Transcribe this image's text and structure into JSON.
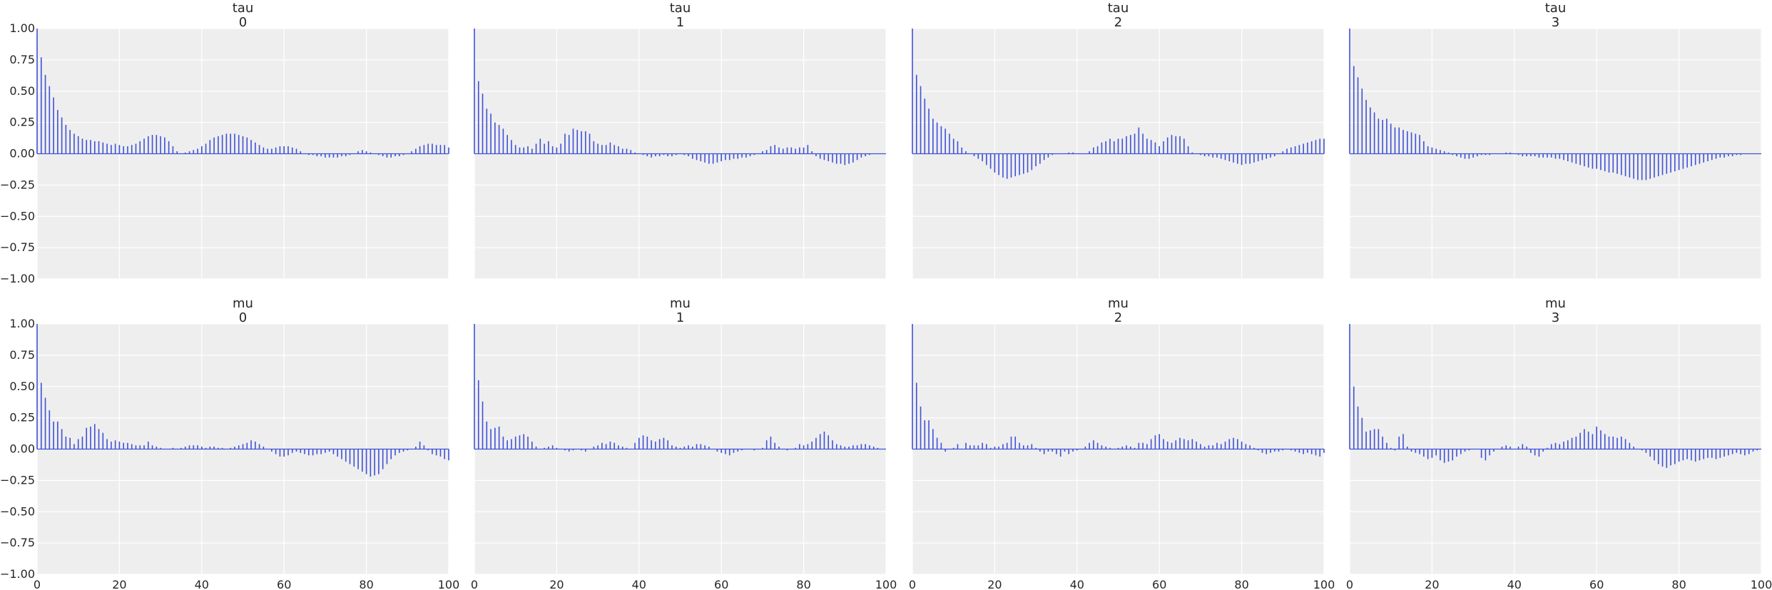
{
  "colors": {
    "bar": "#3f51d6",
    "panel_bg": "#eeeeee",
    "grid": "#ffffff",
    "text": "#262626"
  },
  "chart_data": [
    {
      "type": "bar",
      "title": "tau\n0",
      "xlim": [
        0,
        100
      ],
      "ylim": [
        -1,
        1
      ],
      "grid": true,
      "xticks": [
        "0",
        "20",
        "40",
        "60",
        "80",
        "100"
      ],
      "yticks": [
        "1.00",
        "0.75",
        "0.50",
        "0.25",
        "0.00",
        "−0.25",
        "−0.50",
        "−0.75",
        "−1.00"
      ],
      "values": [
        1.0,
        0.77,
        0.63,
        0.54,
        0.45,
        0.35,
        0.29,
        0.23,
        0.19,
        0.16,
        0.14,
        0.12,
        0.11,
        0.11,
        0.1,
        0.1,
        0.09,
        0.08,
        0.07,
        0.08,
        0.07,
        0.06,
        0.06,
        0.07,
        0.08,
        0.1,
        0.12,
        0.14,
        0.15,
        0.15,
        0.14,
        0.13,
        0.1,
        0.06,
        0.02,
        0.0,
        0.01,
        0.02,
        0.03,
        0.04,
        0.06,
        0.08,
        0.11,
        0.13,
        0.14,
        0.15,
        0.16,
        0.16,
        0.16,
        0.15,
        0.14,
        0.13,
        0.11,
        0.09,
        0.07,
        0.05,
        0.04,
        0.04,
        0.05,
        0.06,
        0.06,
        0.06,
        0.05,
        0.04,
        0.02,
        0.0,
        -0.01,
        -0.01,
        -0.02,
        -0.02,
        -0.03,
        -0.03,
        -0.03,
        -0.03,
        -0.02,
        -0.02,
        -0.01,
        0.0,
        0.02,
        0.03,
        0.02,
        0.01,
        0.0,
        -0.01,
        -0.02,
        -0.03,
        -0.03,
        -0.02,
        -0.02,
        -0.01,
        0.0,
        0.02,
        0.04,
        0.06,
        0.07,
        0.08,
        0.08,
        0.07,
        0.07,
        0.07,
        0.05
      ]
    },
    {
      "type": "bar",
      "title": "tau\n1",
      "xlim": [
        0,
        100
      ],
      "ylim": [
        -1,
        1
      ],
      "grid": true,
      "xticks": [
        "0",
        "20",
        "40",
        "60",
        "80",
        "100"
      ],
      "yticks": [
        "1.00",
        "0.75",
        "0.50",
        "0.25",
        "0.00",
        "−0.25",
        "−0.50",
        "−0.75",
        "−1.00"
      ],
      "values": [
        1.0,
        0.58,
        0.48,
        0.36,
        0.32,
        0.25,
        0.23,
        0.2,
        0.15,
        0.11,
        0.07,
        0.05,
        0.05,
        0.06,
        0.04,
        0.08,
        0.12,
        0.08,
        0.1,
        0.06,
        0.05,
        0.08,
        0.16,
        0.15,
        0.2,
        0.19,
        0.18,
        0.18,
        0.16,
        0.1,
        0.08,
        0.07,
        0.07,
        0.09,
        0.07,
        0.06,
        0.04,
        0.04,
        0.03,
        0.01,
        0.0,
        -0.01,
        -0.02,
        -0.03,
        -0.02,
        -0.02,
        -0.01,
        -0.02,
        -0.02,
        -0.01,
        0.0,
        -0.01,
        -0.02,
        -0.04,
        -0.05,
        -0.06,
        -0.07,
        -0.08,
        -0.08,
        -0.07,
        -0.06,
        -0.05,
        -0.05,
        -0.04,
        -0.04,
        -0.03,
        -0.03,
        -0.02,
        -0.01,
        0.0,
        0.02,
        0.03,
        0.06,
        0.07,
        0.05,
        0.04,
        0.05,
        0.05,
        0.04,
        0.05,
        0.05,
        0.07,
        0.02,
        -0.02,
        -0.04,
        -0.05,
        -0.06,
        -0.07,
        -0.08,
        -0.08,
        -0.09,
        -0.08,
        -0.07,
        -0.05,
        -0.03,
        -0.02,
        -0.01,
        0.0,
        0.0,
        0.0,
        0.0
      ]
    },
    {
      "type": "bar",
      "title": "tau\n2",
      "xlim": [
        0,
        100
      ],
      "ylim": [
        -1,
        1
      ],
      "grid": true,
      "xticks": [
        "0",
        "20",
        "40",
        "60",
        "80",
        "100"
      ],
      "yticks": [
        "1.00",
        "0.75",
        "0.50",
        "0.25",
        "0.00",
        "−0.25",
        "−0.50",
        "−0.75",
        "−1.00"
      ],
      "values": [
        1.0,
        0.63,
        0.54,
        0.44,
        0.36,
        0.28,
        0.25,
        0.22,
        0.2,
        0.16,
        0.12,
        0.1,
        0.05,
        0.02,
        0.0,
        -0.02,
        -0.04,
        -0.06,
        -0.09,
        -0.12,
        -0.15,
        -0.17,
        -0.19,
        -0.2,
        -0.19,
        -0.18,
        -0.17,
        -0.16,
        -0.15,
        -0.13,
        -0.1,
        -0.08,
        -0.05,
        -0.03,
        -0.01,
        0.0,
        0.0,
        0.0,
        0.01,
        0.01,
        0.0,
        0.0,
        0.0,
        0.02,
        0.05,
        0.06,
        0.09,
        0.1,
        0.12,
        0.1,
        0.12,
        0.12,
        0.14,
        0.15,
        0.16,
        0.21,
        0.16,
        0.12,
        0.11,
        0.09,
        0.06,
        0.1,
        0.13,
        0.15,
        0.14,
        0.14,
        0.12,
        0.06,
        0.01,
        0.0,
        -0.01,
        -0.02,
        -0.02,
        -0.03,
        -0.03,
        -0.04,
        -0.05,
        -0.06,
        -0.07,
        -0.08,
        -0.09,
        -0.08,
        -0.08,
        -0.07,
        -0.06,
        -0.05,
        -0.04,
        -0.03,
        -0.02,
        0.0,
        0.02,
        0.04,
        0.05,
        0.06,
        0.07,
        0.08,
        0.09,
        0.1,
        0.11,
        0.12,
        0.12
      ]
    },
    {
      "type": "bar",
      "title": "tau\n3",
      "xlim": [
        0,
        100
      ],
      "ylim": [
        -1,
        1
      ],
      "grid": true,
      "xticks": [
        "0",
        "20",
        "40",
        "60",
        "80",
        "100"
      ],
      "yticks": [
        "1.00",
        "0.75",
        "0.50",
        "0.25",
        "0.00",
        "−0.25",
        "−0.50",
        "−0.75",
        "−1.00"
      ],
      "values": [
        1.0,
        0.7,
        0.61,
        0.52,
        0.43,
        0.37,
        0.33,
        0.28,
        0.27,
        0.28,
        0.24,
        0.21,
        0.21,
        0.19,
        0.18,
        0.17,
        0.16,
        0.15,
        0.1,
        0.06,
        0.05,
        0.04,
        0.03,
        0.02,
        0.01,
        -0.01,
        -0.02,
        -0.03,
        -0.04,
        -0.04,
        -0.03,
        -0.02,
        -0.01,
        -0.01,
        -0.01,
        0.0,
        0.0,
        0.0,
        0.01,
        0.01,
        0.0,
        -0.01,
        -0.02,
        -0.02,
        -0.02,
        -0.02,
        -0.03,
        -0.03,
        -0.03,
        -0.03,
        -0.04,
        -0.04,
        -0.05,
        -0.06,
        -0.07,
        -0.08,
        -0.09,
        -0.1,
        -0.11,
        -0.12,
        -0.12,
        -0.13,
        -0.14,
        -0.15,
        -0.15,
        -0.16,
        -0.17,
        -0.18,
        -0.19,
        -0.2,
        -0.21,
        -0.21,
        -0.21,
        -0.2,
        -0.19,
        -0.18,
        -0.17,
        -0.16,
        -0.15,
        -0.14,
        -0.13,
        -0.12,
        -0.11,
        -0.1,
        -0.09,
        -0.08,
        -0.07,
        -0.06,
        -0.05,
        -0.04,
        -0.03,
        -0.03,
        -0.02,
        -0.02,
        -0.01,
        -0.01,
        0.0,
        0.0,
        0.0,
        0.0,
        0.0
      ]
    },
    {
      "type": "bar",
      "title": "mu\n0",
      "xlim": [
        0,
        100
      ],
      "ylim": [
        -1,
        1
      ],
      "grid": true,
      "xticks": [
        "0",
        "20",
        "40",
        "60",
        "80",
        "100"
      ],
      "yticks": [
        "1.00",
        "0.75",
        "0.50",
        "0.25",
        "0.00",
        "−0.25",
        "−0.50",
        "−0.75",
        "−1.00"
      ],
      "values": [
        1.0,
        0.53,
        0.41,
        0.31,
        0.22,
        0.22,
        0.16,
        0.1,
        0.09,
        0.04,
        0.08,
        0.1,
        0.17,
        0.18,
        0.2,
        0.16,
        0.13,
        0.08,
        0.06,
        0.07,
        0.06,
        0.05,
        0.05,
        0.04,
        0.03,
        0.03,
        0.03,
        0.06,
        0.03,
        0.02,
        0.01,
        0.0,
        0.0,
        0.01,
        0.0,
        0.01,
        0.02,
        0.03,
        0.03,
        0.03,
        0.02,
        0.01,
        0.02,
        0.02,
        0.01,
        0.01,
        0.0,
        0.01,
        0.02,
        0.03,
        0.04,
        0.05,
        0.07,
        0.06,
        0.04,
        0.02,
        0.0,
        -0.02,
        -0.04,
        -0.06,
        -0.06,
        -0.05,
        -0.03,
        -0.02,
        -0.03,
        -0.04,
        -0.05,
        -0.05,
        -0.04,
        -0.04,
        -0.03,
        -0.02,
        -0.04,
        -0.06,
        -0.08,
        -0.1,
        -0.12,
        -0.14,
        -0.16,
        -0.18,
        -0.2,
        -0.22,
        -0.21,
        -0.2,
        -0.16,
        -0.12,
        -0.08,
        -0.05,
        -0.03,
        -0.02,
        -0.01,
        0.0,
        0.02,
        0.06,
        0.03,
        -0.01,
        -0.04,
        -0.05,
        -0.06,
        -0.08,
        -0.09
      ]
    },
    {
      "type": "bar",
      "title": "mu\n1",
      "xlim": [
        0,
        100
      ],
      "ylim": [
        -1,
        1
      ],
      "grid": true,
      "xticks": [
        "0",
        "20",
        "40",
        "60",
        "80",
        "100"
      ],
      "yticks": [
        "1.00",
        "0.75",
        "0.50",
        "0.25",
        "0.00",
        "−0.25",
        "−0.50",
        "−0.75",
        "−1.00"
      ],
      "values": [
        1.0,
        0.55,
        0.38,
        0.22,
        0.16,
        0.17,
        0.18,
        0.1,
        0.07,
        0.08,
        0.1,
        0.11,
        0.12,
        0.1,
        0.06,
        0.02,
        0.0,
        0.01,
        0.02,
        0.03,
        0.01,
        0.0,
        -0.01,
        -0.02,
        -0.01,
        0.0,
        -0.01,
        -0.02,
        0.0,
        0.02,
        0.03,
        0.05,
        0.04,
        0.06,
        0.05,
        0.03,
        0.02,
        0.01,
        0.0,
        0.05,
        0.09,
        0.11,
        0.1,
        0.07,
        0.06,
        0.08,
        0.09,
        0.07,
        0.03,
        0.02,
        0.01,
        0.02,
        0.03,
        0.02,
        0.04,
        0.04,
        0.03,
        0.02,
        0.0,
        -0.02,
        -0.03,
        -0.04,
        -0.05,
        -0.03,
        -0.02,
        -0.01,
        0.0,
        0.0,
        -0.01,
        0.0,
        0.01,
        0.07,
        0.1,
        0.05,
        0.02,
        0.0,
        -0.01,
        0.0,
        0.01,
        0.04,
        0.03,
        0.04,
        0.06,
        0.09,
        0.12,
        0.14,
        0.11,
        0.07,
        0.04,
        0.03,
        0.02,
        0.02,
        0.03,
        0.03,
        0.04,
        0.04,
        0.03,
        0.02,
        0.01,
        0.0,
        0.0
      ]
    },
    {
      "type": "bar",
      "title": "mu\n2",
      "xlim": [
        0,
        100
      ],
      "ylim": [
        -1,
        1
      ],
      "grid": true,
      "xticks": [
        "0",
        "20",
        "40",
        "60",
        "80",
        "100"
      ],
      "yticks": [
        "1.00",
        "0.75",
        "0.50",
        "0.25",
        "0.00",
        "−0.25",
        "−0.50",
        "−0.75",
        "−1.00"
      ],
      "values": [
        1.0,
        0.53,
        0.34,
        0.23,
        0.23,
        0.16,
        0.09,
        0.05,
        -0.02,
        0.0,
        0.01,
        0.04,
        0.0,
        0.05,
        0.03,
        0.03,
        0.03,
        0.05,
        0.04,
        0.01,
        0.02,
        0.02,
        0.04,
        0.05,
        0.1,
        0.1,
        0.05,
        0.03,
        0.03,
        0.04,
        0.01,
        -0.02,
        -0.04,
        -0.02,
        -0.02,
        -0.04,
        -0.06,
        -0.02,
        -0.04,
        -0.02,
        -0.01,
        0.0,
        0.02,
        0.05,
        0.07,
        0.05,
        0.03,
        0.02,
        0.01,
        0.0,
        0.01,
        0.02,
        0.03,
        0.02,
        0.01,
        0.05,
        0.05,
        0.04,
        0.08,
        0.11,
        0.12,
        0.08,
        0.06,
        0.05,
        0.07,
        0.09,
        0.08,
        0.07,
        0.08,
        0.06,
        0.04,
        0.02,
        0.03,
        0.03,
        0.05,
        0.04,
        0.06,
        0.08,
        0.09,
        0.08,
        0.06,
        0.04,
        0.03,
        0.01,
        -0.01,
        -0.03,
        -0.04,
        -0.03,
        -0.02,
        -0.02,
        -0.01,
        0.0,
        -0.01,
        -0.02,
        -0.03,
        -0.04,
        -0.03,
        -0.04,
        -0.05,
        -0.06,
        -0.03
      ]
    },
    {
      "type": "bar",
      "title": "mu\n3",
      "xlim": [
        0,
        100
      ],
      "ylim": [
        -1,
        1
      ],
      "grid": true,
      "xticks": [
        "0",
        "20",
        "40",
        "60",
        "80",
        "100"
      ],
      "yticks": [
        "1.00",
        "0.75",
        "0.50",
        "0.25",
        "0.00",
        "−0.25",
        "−0.50",
        "−0.75",
        "−1.00"
      ],
      "values": [
        1.0,
        0.5,
        0.34,
        0.25,
        0.14,
        0.15,
        0.16,
        0.16,
        0.1,
        0.05,
        0.01,
        -0.01,
        0.1,
        0.12,
        0.02,
        -0.02,
        -0.03,
        -0.04,
        -0.06,
        -0.08,
        -0.07,
        -0.05,
        -0.09,
        -0.11,
        -0.1,
        -0.09,
        -0.06,
        -0.04,
        -0.02,
        -0.01,
        0.0,
        0.0,
        -0.07,
        -0.09,
        -0.05,
        -0.02,
        0.0,
        0.02,
        0.03,
        0.02,
        0.0,
        0.02,
        0.04,
        0.02,
        -0.03,
        -0.05,
        -0.06,
        -0.02,
        0.01,
        0.04,
        0.05,
        0.04,
        0.06,
        0.07,
        0.09,
        0.1,
        0.13,
        0.16,
        0.14,
        0.12,
        0.18,
        0.15,
        0.12,
        0.1,
        0.1,
        0.09,
        0.1,
        0.08,
        0.05,
        0.02,
        0.0,
        -0.01,
        -0.03,
        -0.06,
        -0.09,
        -0.12,
        -0.14,
        -0.15,
        -0.13,
        -0.12,
        -0.1,
        -0.09,
        -0.08,
        -0.09,
        -0.1,
        -0.09,
        -0.08,
        -0.07,
        -0.07,
        -0.08,
        -0.07,
        -0.06,
        -0.05,
        -0.04,
        -0.03,
        -0.04,
        -0.05,
        -0.04,
        -0.02,
        -0.01,
        0.0
      ]
    }
  ]
}
